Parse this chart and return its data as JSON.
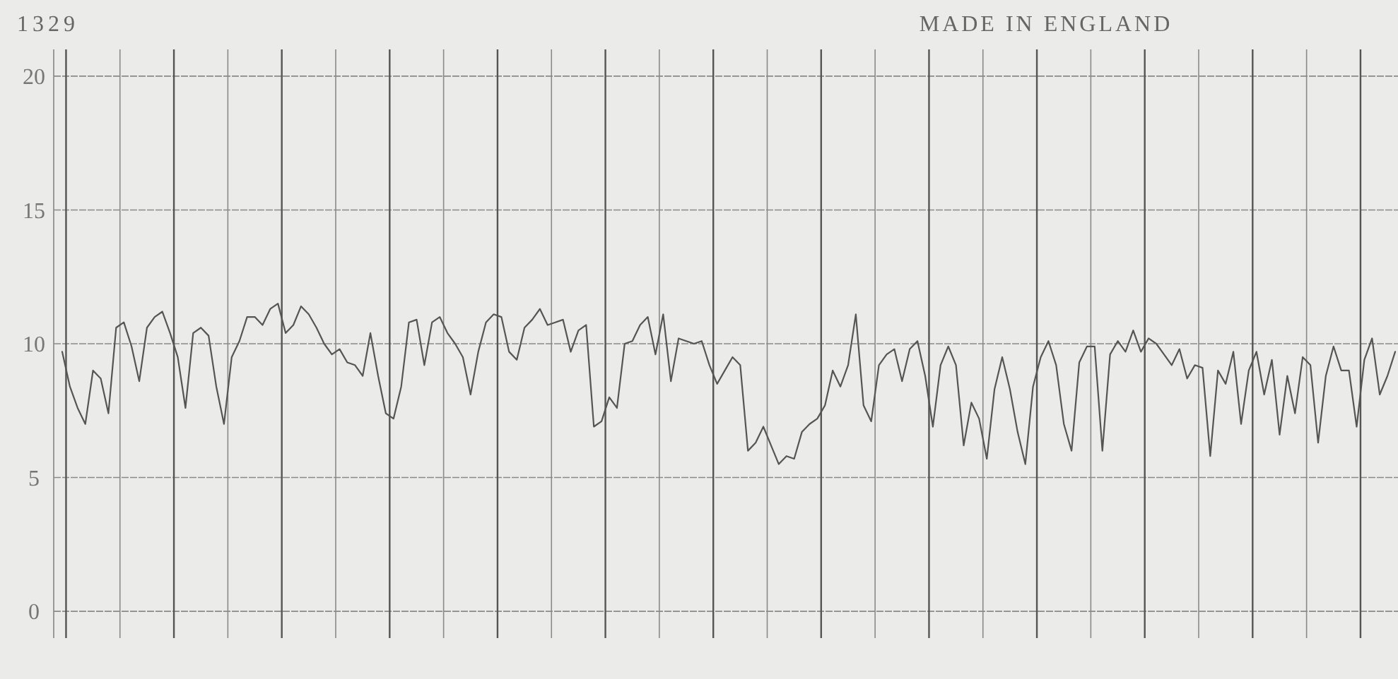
{
  "chart_data": {
    "type": "line",
    "annotations": [
      "1329",
      "MADE IN ENGLAND"
    ],
    "categories": [
      null,
      null,
      null,
      null,
      null,
      null,
      null,
      null,
      null,
      null,
      null,
      null,
      null,
      null,
      null,
      null,
      null,
      null,
      null,
      null,
      null,
      null,
      null,
      null,
      null,
      null,
      null,
      null,
      null,
      null,
      null,
      null,
      null,
      null,
      null,
      null,
      null,
      null,
      null,
      null,
      null,
      null,
      null,
      null,
      null,
      null,
      null,
      null,
      null,
      null,
      null,
      null,
      null,
      null,
      null,
      null,
      null,
      null,
      null,
      null,
      null,
      null,
      null,
      null,
      null,
      null,
      null,
      null,
      null,
      null,
      null,
      null,
      null,
      null,
      null,
      null,
      null,
      null,
      null,
      null,
      null,
      null,
      null,
      null,
      null,
      null,
      null,
      null,
      null,
      null,
      null,
      null,
      null,
      null,
      null,
      null,
      null,
      null,
      null,
      null,
      null,
      null,
      null,
      null,
      null,
      null,
      null,
      null,
      null,
      null,
      null,
      null,
      null,
      null,
      null,
      null,
      null,
      null,
      null,
      null,
      null,
      null,
      null,
      null,
      null,
      null,
      null,
      null,
      null,
      null,
      null,
      null,
      null,
      null,
      null,
      null,
      null,
      null,
      null,
      null,
      null,
      null,
      null,
      null,
      null,
      null,
      null,
      null,
      null,
      null,
      null,
      null,
      null,
      null,
      null,
      null,
      null,
      null,
      null,
      null,
      null,
      null,
      null,
      null,
      null,
      null,
      null,
      null,
      null,
      null,
      null,
      null,
      null,
      null
    ],
    "series": [
      {
        "color": "#555555",
        "values": [
          9.7,
          8.4,
          7.6,
          7.0,
          9.0,
          8.7,
          7.4,
          10.6,
          10.8,
          9.9,
          8.6,
          10.6,
          11.0,
          11.2,
          10.4,
          9.5,
          7.6,
          10.4,
          10.6,
          10.3,
          8.4,
          7.0,
          9.5,
          10.1,
          11.0,
          11.0,
          10.7,
          11.3,
          11.5,
          10.4,
          10.7,
          11.4,
          11.1,
          10.6,
          10.0,
          9.6,
          9.8,
          9.3,
          9.2,
          8.8,
          10.4,
          8.8,
          7.4,
          7.2,
          8.4,
          10.8,
          10.9,
          9.2,
          10.8,
          11.0,
          10.4,
          10.0,
          9.5,
          8.1,
          9.7,
          10.8,
          11.1,
          11.0,
          9.7,
          9.4,
          10.6,
          10.9,
          11.3,
          10.7,
          10.8,
          10.9,
          9.7,
          10.5,
          10.7,
          6.9,
          7.1,
          8.0,
          7.6,
          10.0,
          10.1,
          10.7,
          11.0,
          9.6,
          11.1,
          8.6,
          10.2,
          10.1,
          10.0,
          10.1,
          9.2,
          8.5,
          9.0,
          9.5,
          9.2,
          6.0,
          6.3,
          6.9,
          6.2,
          5.5,
          5.8,
          5.7,
          6.7,
          7.0,
          7.2,
          7.7,
          9.0,
          8.4,
          9.2,
          11.1,
          7.7,
          7.1,
          9.2,
          9.6,
          9.8,
          8.6,
          9.8,
          10.1,
          8.8,
          6.9,
          9.2,
          9.9,
          9.2,
          6.2,
          7.8,
          7.2,
          5.7,
          8.3,
          9.5,
          8.3,
          6.7,
          5.5,
          8.4,
          9.5,
          10.1,
          9.2,
          7.0,
          6.0,
          9.3,
          9.9,
          9.9,
          6.0,
          9.6,
          10.1,
          9.7,
          10.5,
          9.7,
          10.2,
          10.0,
          9.6,
          9.2,
          9.8,
          8.7,
          9.2,
          9.1,
          5.8,
          9.0,
          8.5,
          9.7,
          7.0,
          9.0,
          9.7,
          8.1,
          9.4,
          6.6,
          8.8,
          7.4,
          9.5,
          9.2,
          6.3,
          8.8,
          9.9,
          9.0,
          9.0,
          6.9,
          9.4,
          10.2,
          8.1,
          8.8,
          9.7
        ]
      }
    ],
    "ylim": [
      -1,
      21
    ],
    "yticks": [
      0,
      5,
      10,
      15,
      20
    ],
    "grid": true
  }
}
